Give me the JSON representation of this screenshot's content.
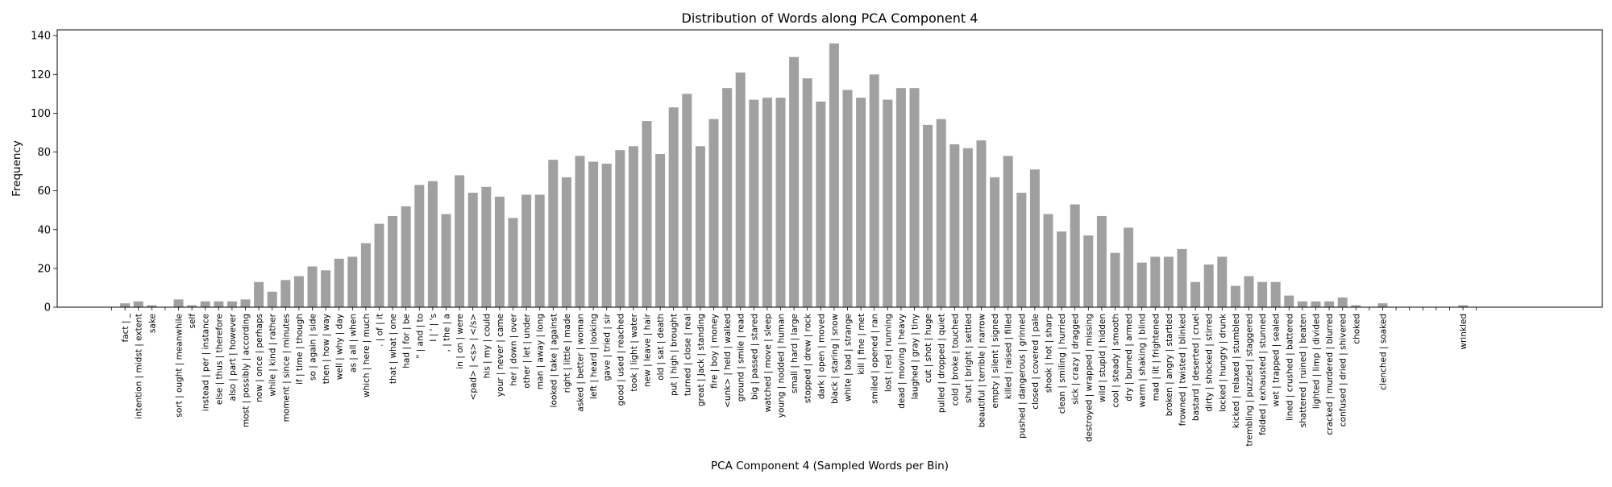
{
  "chart_data": {
    "type": "bar",
    "title": "Distribution of Words along PCA Component 4",
    "xlabel": "PCA Component 4 (Sampled Words per Bin)",
    "ylabel": "Frequency",
    "ylim": [
      0,
      143
    ],
    "yticks": [
      0,
      20,
      40,
      60,
      80,
      100,
      120,
      140
    ],
    "bar_color": "#a0a0a0",
    "grid": false,
    "categories": [
      "",
      "fact | _",
      "intention | midst | extent",
      "sake",
      "",
      "sort | ought | meanwhile",
      "self",
      "instead | per | instance",
      "else | thus | therefore",
      "also | part | however",
      "most | possibly | according",
      "now | once | perhaps",
      "while | kind | rather",
      "moment | since | minutes",
      "if | time | though",
      "so | again | side",
      "then | how | way",
      "well | why | day",
      "as | all | when",
      "which | here | much",
      ". | of | it",
      "that | what | one",
      "had | for | be",
      "\" | and | to",
      "I | ' | 's",
      ", | the | a",
      "in | on | were",
      "<pad> | <s> | </s>",
      "his | my | could",
      "your | never | came",
      "her | down | over",
      "other | let | under",
      "man | away | long",
      "looked | take | against",
      "right | little | made",
      "asked | better | woman",
      "left | heard | looking",
      "gave | tried | sir",
      "good | used | reached",
      "took | light | water",
      "new | leave | hair",
      "old | sat | death",
      "put | high | brought",
      "turned | close | real",
      "great | Jack | standing",
      "fire | boy | money",
      "<unk> | held | walked",
      "ground | smile | read",
      "big | passed | stared",
      "watched | move | sleep",
      "young | nodded | human",
      "small | hard | large",
      "stopped | drew | rock",
      "dark | open | moved",
      "black | staring | snow",
      "white | bad | strange",
      "kill | fine | met",
      "smiled | opened | ran",
      "lost | red | running",
      "dead | moving | heavy",
      "laughed | gray | tiny",
      "cut | shot | huge",
      "pulled | dropped | quiet",
      "cold | broke | touched",
      "shut | bright | settled",
      "beautiful | terrible | narrow",
      "empty | silent | signed",
      "killed | raised | filled",
      "pushed | dangerous | grinned",
      "closed | covered | pale",
      "shook | hot | sharp",
      "clean | smiling | hurried",
      "sick | crazy | dragged",
      "destroyed | wrapped | missing",
      "wild | stupid | hidden",
      "cool | steady | smooth",
      "dry | burned | armed",
      "warm | shaking | blind",
      "mad | lit | frightened",
      "broken | angry | startled",
      "frowned | twisted | blinked",
      "bastard | deserted | cruel",
      "dirty | shocked | stirred",
      "locked | hungry | drunk",
      "kicked | relaxed | stumbled",
      "trembling | puzzled | staggered",
      "folded | exhausted | stunned",
      "wet | trapped | sealed",
      "lined | crushed | battered",
      "shattered | ruined | beaten",
      "lighted | limp | divided",
      "cracked | murdered | blurred",
      "confused | dried | shivered",
      "choked",
      "",
      "clenched | soaked",
      "",
      "",
      "",
      "",
      "",
      "wrinkled",
      ""
    ],
    "values": [
      0,
      2,
      3,
      1,
      0,
      4,
      1,
      3,
      3,
      3,
      4,
      13,
      8,
      14,
      16,
      21,
      19,
      25,
      26,
      33,
      43,
      47,
      52,
      63,
      65,
      48,
      68,
      59,
      62,
      57,
      46,
      58,
      58,
      76,
      67,
      78,
      75,
      74,
      81,
      83,
      96,
      79,
      103,
      110,
      83,
      97,
      113,
      121,
      107,
      108,
      108,
      129,
      118,
      106,
      136,
      112,
      108,
      120,
      107,
      113,
      113,
      94,
      97,
      84,
      82,
      86,
      67,
      78,
      59,
      71,
      48,
      39,
      53,
      37,
      47,
      28,
      41,
      23,
      26,
      26,
      30,
      13,
      22,
      26,
      11,
      16,
      13,
      13,
      6,
      3,
      3,
      3,
      5,
      1,
      0,
      2,
      0,
      0,
      0,
      0,
      0,
      1,
      0
    ]
  }
}
